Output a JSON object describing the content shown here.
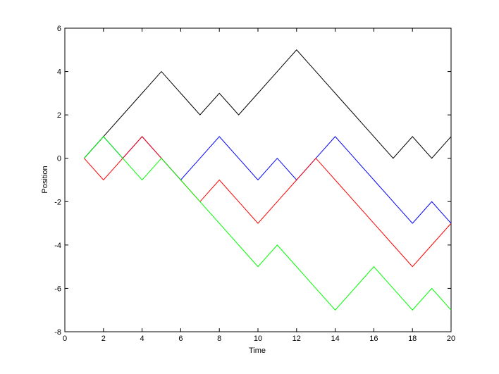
{
  "chart_data": {
    "type": "line",
    "xlabel": "Time",
    "ylabel": "Position",
    "x": [
      1,
      2,
      3,
      4,
      5,
      6,
      7,
      8,
      9,
      10,
      11,
      12,
      13,
      14,
      15,
      16,
      17,
      18,
      19,
      20
    ],
    "series": [
      {
        "color": "#0000ff",
        "values": [
          0,
          1,
          0,
          1,
          0,
          -1,
          0,
          1,
          0,
          -1,
          0,
          -1,
          0,
          1,
          0,
          -1,
          -2,
          -3,
          -2,
          -3
        ]
      },
      {
        "color": "#000000",
        "values": [
          0,
          1,
          2,
          3,
          4,
          3,
          2,
          3,
          2,
          3,
          4,
          5,
          4,
          3,
          2,
          1,
          0,
          1,
          0,
          1
        ]
      },
      {
        "color": "#ff0000",
        "values": [
          0,
          -1,
          0,
          1,
          0,
          -1,
          -2,
          -1,
          -2,
          -3,
          -2,
          -1,
          0,
          -1,
          -2,
          -3,
          -4,
          -5,
          -4,
          -3
        ]
      },
      {
        "color": "#00ff00",
        "values": [
          0,
          1,
          0,
          -1,
          0,
          -1,
          -2,
          -3,
          -4,
          -5,
          -4,
          -5,
          -6,
          -7,
          -6,
          -5,
          -6,
          -7,
          -6,
          -7
        ]
      }
    ],
    "xlim": [
      0,
      20
    ],
    "xticks": [
      0,
      2,
      4,
      6,
      8,
      10,
      12,
      14,
      16,
      18,
      20
    ],
    "ylim": [
      -8,
      6
    ],
    "yticks": [
      -8,
      -6,
      -4,
      -2,
      0,
      2,
      4,
      6
    ]
  }
}
